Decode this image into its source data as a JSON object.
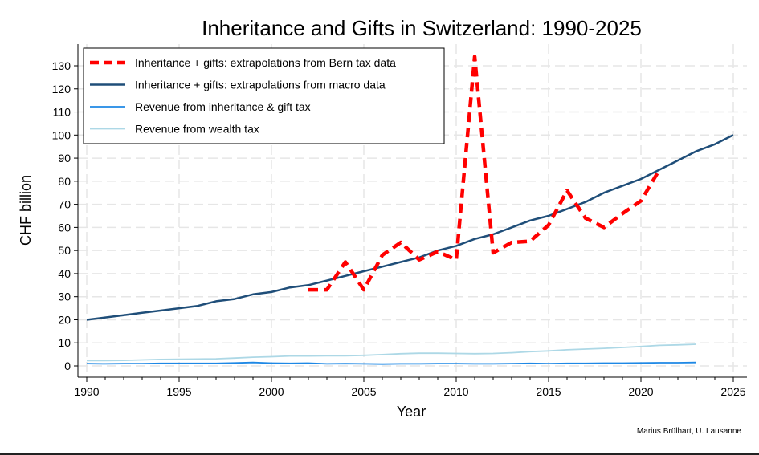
{
  "chart_data": {
    "type": "line",
    "title": "Inheritance and Gifts in Switzerland: 1990-2025",
    "xlabel": "Year",
    "ylabel": "CHF billion",
    "credit": "Marius Brülhart, U. Lausanne",
    "xlim": [
      1990,
      2025
    ],
    "ylim": [
      0,
      130
    ],
    "xticks": [
      1990,
      1995,
      2000,
      2005,
      2010,
      2015,
      2020,
      2025
    ],
    "yticks": [
      0,
      10,
      20,
      30,
      40,
      50,
      60,
      70,
      80,
      90,
      100,
      110,
      120,
      130
    ],
    "grid": true,
    "legend_position": "top-left",
    "series": [
      {
        "name": "Inheritance + gifts: extrapolations from Bern tax data",
        "color": "#ff0000",
        "style": "dashed",
        "x": [
          2002,
          2003,
          2004,
          2005,
          2006,
          2007,
          2008,
          2009,
          2010,
          2011,
          2012,
          2013,
          2014,
          2015,
          2016,
          2017,
          2018,
          2019,
          2020,
          2021
        ],
        "values": [
          33,
          33,
          45,
          33,
          48,
          53.5,
          46,
          49.5,
          46,
          134,
          49,
          53.5,
          54,
          61,
          76,
          64,
          60,
          66,
          71.5,
          85
        ]
      },
      {
        "name": "Inheritance + gifts: extrapolations from macro data",
        "color": "#1f4e79",
        "style": "solid",
        "x": [
          1990,
          1991,
          1992,
          1993,
          1994,
          1995,
          1996,
          1997,
          1998,
          1999,
          2000,
          2001,
          2002,
          2003,
          2004,
          2005,
          2006,
          2007,
          2008,
          2009,
          2010,
          2011,
          2012,
          2013,
          2014,
          2015,
          2016,
          2017,
          2018,
          2019,
          2020,
          2021,
          2022,
          2023,
          2024,
          2025
        ],
        "values": [
          20,
          21,
          22,
          23,
          24,
          25,
          26,
          28,
          29,
          31,
          32,
          34,
          35,
          37,
          39,
          41,
          43,
          45,
          47,
          50,
          52,
          55,
          57,
          60,
          63,
          65,
          68,
          71,
          75,
          78,
          81,
          85,
          89,
          93,
          96,
          100
        ]
      },
      {
        "name": "Revenue from inheritance & gift tax",
        "color": "#1e88e5",
        "style": "solid",
        "x": [
          1990,
          1991,
          1992,
          1993,
          1994,
          1995,
          1996,
          1997,
          1998,
          1999,
          2000,
          2001,
          2002,
          2003,
          2004,
          2005,
          2006,
          2007,
          2008,
          2009,
          2010,
          2011,
          2012,
          2013,
          2014,
          2015,
          2016,
          2017,
          2018,
          2019,
          2020,
          2021,
          2022,
          2023
        ],
        "values": [
          1,
          0.9,
          1,
          1,
          1.1,
          1.1,
          1.1,
          1.1,
          1.3,
          1.5,
          1.2,
          1.1,
          1.2,
          0.9,
          1,
          0.9,
          0.8,
          0.9,
          0.9,
          1,
          1,
          0.9,
          0.9,
          1,
          1.1,
          1,
          1.1,
          1.1,
          1.2,
          1.2,
          1.3,
          1.4,
          1.4,
          1.5
        ]
      },
      {
        "name": "Revenue from wealth tax",
        "color": "#add8e6",
        "style": "solid",
        "x": [
          1990,
          1991,
          1992,
          1993,
          1994,
          1995,
          1996,
          1997,
          1998,
          1999,
          2000,
          2001,
          2002,
          2003,
          2004,
          2005,
          2006,
          2007,
          2008,
          2009,
          2010,
          2011,
          2012,
          2013,
          2014,
          2015,
          2016,
          2017,
          2018,
          2019,
          2020,
          2021,
          2022,
          2023
        ],
        "values": [
          2.3,
          2.3,
          2.4,
          2.6,
          2.8,
          2.9,
          3,
          3.1,
          3.4,
          3.8,
          4,
          4.3,
          4.3,
          4.4,
          4.4,
          4.6,
          4.9,
          5.3,
          5.5,
          5.5,
          5.4,
          5.3,
          5.4,
          5.7,
          6.2,
          6.5,
          7,
          7.3,
          7.6,
          8,
          8.4,
          8.9,
          9.1,
          9.4
        ]
      }
    ]
  }
}
